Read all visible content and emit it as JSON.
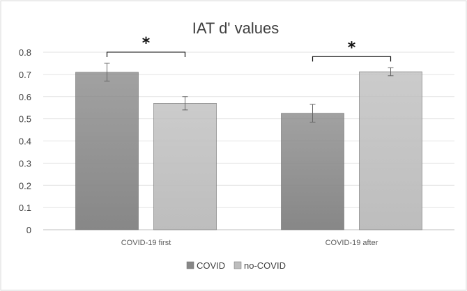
{
  "chart_data": {
    "type": "bar",
    "title": "IAT d' values",
    "xlabel": "",
    "ylabel": "",
    "ylim": [
      0,
      0.8
    ],
    "yticks": [
      0,
      0.1,
      0.2,
      0.3,
      0.4,
      0.5,
      0.6,
      0.7,
      0.8
    ],
    "ytick_labels": [
      "0",
      "0.1",
      "0.2",
      "0.3",
      "0.4",
      "0.5",
      "0.6",
      "0.7",
      "0.8"
    ],
    "categories": [
      "COVID-19 first",
      "COVID-19 after"
    ],
    "series": [
      {
        "name": "COVID",
        "values": [
          0.71,
          0.525
        ],
        "errors": [
          0.04,
          0.04
        ],
        "color": "#878787"
      },
      {
        "name": "no-COVID",
        "values": [
          0.57,
          0.712
        ],
        "errors": [
          0.03,
          0.018
        ],
        "color": "#bdbdbd"
      }
    ],
    "annotations": [
      {
        "text": "*",
        "category_index": 0
      },
      {
        "text": "*",
        "category_index": 1
      }
    ],
    "grid": true,
    "legend_position": "bottom",
    "colors": {
      "border": "#d9d9d9",
      "gridline": "#e2e2e2",
      "axis": "#bfbfbf",
      "error_bar": "#666666"
    }
  }
}
